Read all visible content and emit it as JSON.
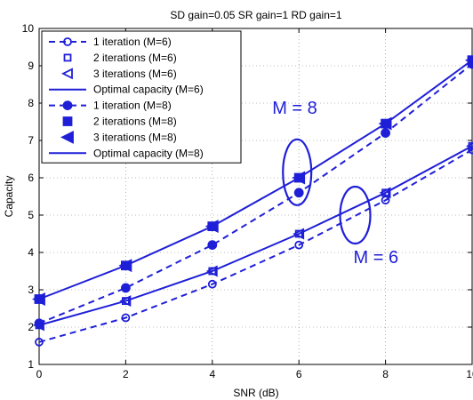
{
  "chart_data": {
    "type": "line",
    "title": "SD gain=0.05   SR gain=1   RD gain=1",
    "xlabel": "SNR (dB)",
    "ylabel": "Capacity",
    "xlim": [
      0,
      10
    ],
    "ylim": [
      1,
      10
    ],
    "xticks": [
      "0",
      "2",
      "4",
      "6",
      "8",
      "10"
    ],
    "yticks": [
      "1",
      "2",
      "3",
      "4",
      "5",
      "6",
      "7",
      "8",
      "9",
      "10"
    ],
    "grid": true,
    "legend_position": "top-left",
    "series_color": "#1f1fd8",
    "x": [
      0,
      2,
      4,
      6,
      8,
      10
    ],
    "series": [
      {
        "name": "1 iteration (M=6)",
        "marker": "circle-open",
        "line": "dashed",
        "values": [
          1.6,
          2.25,
          3.15,
          4.2,
          5.4,
          6.75
        ]
      },
      {
        "name": "2 iterations (M=6)",
        "marker": "square-open",
        "line": "none",
        "values": [
          2.05,
          2.7,
          3.5,
          4.5,
          5.6,
          6.85
        ]
      },
      {
        "name": "3 iterations (M=6)",
        "marker": "triangle-left-open",
        "line": "none",
        "values": [
          2.05,
          2.7,
          3.5,
          4.5,
          5.6,
          6.85
        ]
      },
      {
        "name": "Optimal capacity (M=6)",
        "marker": "none",
        "line": "solid",
        "values": [
          2.05,
          2.7,
          3.5,
          4.5,
          5.6,
          6.85
        ]
      },
      {
        "name": "1 iteration (M=8)",
        "marker": "circle-filled",
        "line": "dashed",
        "values": [
          2.1,
          3.05,
          4.2,
          5.6,
          7.2,
          9.05
        ]
      },
      {
        "name": "2 iterations (M=8)",
        "marker": "square-filled",
        "line": "none",
        "values": [
          2.75,
          3.65,
          4.7,
          6.0,
          7.45,
          9.15
        ]
      },
      {
        "name": "3 iterations (M=8)",
        "marker": "triangle-left-filled",
        "line": "none",
        "values": [
          2.75,
          3.65,
          4.7,
          6.0,
          7.45,
          9.15
        ]
      },
      {
        "name": "Optimal capacity (M=8)",
        "marker": "none",
        "line": "solid",
        "values": [
          2.75,
          3.65,
          4.7,
          6.0,
          7.45,
          9.15
        ]
      }
    ],
    "annotations": [
      {
        "text": "M = 8",
        "x": 6,
        "y": 6.1
      },
      {
        "text": "M = 6",
        "x": 7.3,
        "y": 5.0
      }
    ]
  }
}
